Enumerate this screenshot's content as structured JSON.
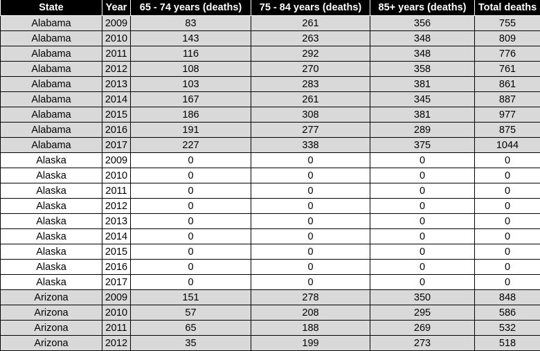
{
  "headers": [
    "State",
    "Year",
    "65 - 74 years (deaths)",
    "75 - 84 years (deaths)",
    "85+ years (deaths)",
    "Total deaths"
  ],
  "rows": [
    [
      "Alabama",
      "2009",
      "83",
      "261",
      "356",
      "755"
    ],
    [
      "Alabama",
      "2010",
      "143",
      "263",
      "348",
      "809"
    ],
    [
      "Alabama",
      "2011",
      "116",
      "292",
      "348",
      "776"
    ],
    [
      "Alabama",
      "2012",
      "108",
      "270",
      "358",
      "761"
    ],
    [
      "Alabama",
      "2013",
      "103",
      "283",
      "381",
      "861"
    ],
    [
      "Alabama",
      "2014",
      "167",
      "261",
      "345",
      "887"
    ],
    [
      "Alabama",
      "2015",
      "186",
      "308",
      "381",
      "977"
    ],
    [
      "Alabama",
      "2016",
      "191",
      "277",
      "289",
      "875"
    ],
    [
      "Alabama",
      "2017",
      "227",
      "338",
      "375",
      "1044"
    ],
    [
      "Alaska",
      "2009",
      "0",
      "0",
      "0",
      "0"
    ],
    [
      "Alaska",
      "2010",
      "0",
      "0",
      "0",
      "0"
    ],
    [
      "Alaska",
      "2011",
      "0",
      "0",
      "0",
      "0"
    ],
    [
      "Alaska",
      "2012",
      "0",
      "0",
      "0",
      "0"
    ],
    [
      "Alaska",
      "2013",
      "0",
      "0",
      "0",
      "0"
    ],
    [
      "Alaska",
      "2014",
      "0",
      "0",
      "0",
      "0"
    ],
    [
      "Alaska",
      "2015",
      "0",
      "0",
      "0",
      "0"
    ],
    [
      "Alaska",
      "2016",
      "0",
      "0",
      "0",
      "0"
    ],
    [
      "Alaska",
      "2017",
      "0",
      "0",
      "0",
      "0"
    ],
    [
      "Arizona",
      "2009",
      "151",
      "278",
      "350",
      "848"
    ],
    [
      "Arizona",
      "2010",
      "57",
      "208",
      "295",
      "586"
    ],
    [
      "Arizona",
      "2011",
      "65",
      "188",
      "269",
      "532"
    ],
    [
      "Arizona",
      "2012",
      "35",
      "199",
      "273",
      "518"
    ]
  ],
  "colors": {
    "header_bg": "#000000",
    "header_text": "#ffffff",
    "shaded_row": "#d9d9d9",
    "plain_row": "#ffffff",
    "grid": "#000000"
  }
}
